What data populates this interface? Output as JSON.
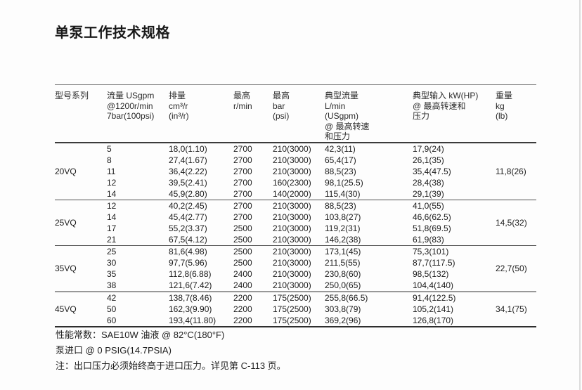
{
  "page_title": "单泵工作技术规格",
  "table": {
    "columns": [
      "型号系列",
      "流量 USgpm\n@1200r/min\n7bar(100psi)",
      "排量\ncm³/r\n(in³/r)",
      "最高\nr/min",
      "最高\nbar\n(psi)",
      "典型流量\nL/min\n(USgpm)\n@ 最高转速\n和压力",
      "典型输入 kW(HP)\n@ 最高转速和\n压力",
      "重量\nkg\n(lb)"
    ],
    "groups": [
      {
        "model": "20VQ",
        "weight": "11,8(26)",
        "rows": [
          [
            "5",
            "18,0(1.10)",
            "2700",
            "210(3000)",
            "42,3(11)",
            "17,9(24)"
          ],
          [
            "8",
            "27,4(1.67)",
            "2700",
            "210(3000)",
            "65,4(17)",
            "26,1(35)"
          ],
          [
            "11",
            "36,4(2.22)",
            "2700",
            "210(3000)",
            "88,5(23)",
            "35,4(47.5)"
          ],
          [
            "12",
            "39,5(2.41)",
            "2700",
            "160(2300)",
            "98,1(25.5)",
            "28,4(38)"
          ],
          [
            "14",
            "45,9(2.80)",
            "2700",
            "140(2000)",
            "115,4(30)",
            "29,1(39)"
          ]
        ]
      },
      {
        "model": "25VQ",
        "weight": "14,5(32)",
        "rows": [
          [
            "12",
            "40,2(2.45)",
            "2700",
            "210(3000)",
            "88,5(23)",
            "41,0(55)"
          ],
          [
            "14",
            "45,4(2.77)",
            "2700",
            "210(3000)",
            "103,8(27)",
            "46,6(62.5)"
          ],
          [
            "17",
            "55,2(3.37)",
            "2500",
            "210(3000)",
            "119,2(31)",
            "51,8(69.5)"
          ],
          [
            "21",
            "67,5(4.12)",
            "2500",
            "210(3000)",
            "146,2(38)",
            "61,9(83)"
          ]
        ]
      },
      {
        "model": "35VQ",
        "weight": "22,7(50)",
        "rows": [
          [
            "25",
            "81,6(4.98)",
            "2500",
            "210(3000)",
            "173,1(45)",
            "75,3(101)"
          ],
          [
            "30",
            "97,7(5.96)",
            "2500",
            "210(3000)",
            "211,5(55)",
            "87,7(117.5)"
          ],
          [
            "35",
            "112,8(6.88)",
            "2400",
            "210(3000)",
            "230,8(60)",
            "98,5(132)"
          ],
          [
            "38",
            "121,6(7.42)",
            "2400",
            "210(3000)",
            "250,0(65)",
            "104,4(140)"
          ]
        ]
      },
      {
        "model": "45VQ",
        "weight": "34,1(75)",
        "rows": [
          [
            "42",
            "138,7(8.46)",
            "2200",
            "175(2500)",
            "255,8(66.5)",
            "91,4(122.5)"
          ],
          [
            "50",
            "162,3(9.90)",
            "2200",
            "175(2500)",
            "303,8(79)",
            "105,2(141)"
          ],
          [
            "60",
            "193,4(11.80)",
            "2200",
            "175(2500)",
            "369,2(96)",
            "126,8(170)"
          ]
        ]
      }
    ]
  },
  "notes": [
    "性能常数：SAE10W 油液 @ 82°C(180°F)",
    "泵进口 @ 0 PSIG(14.7PSIA)",
    "注：出口压力必须始终高于进口压力。详见第 C-113 页。"
  ]
}
